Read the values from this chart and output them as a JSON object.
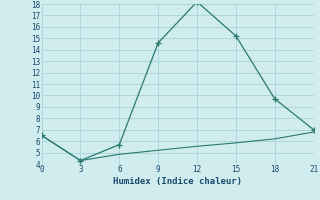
{
  "xlabel": "Humidex (Indice chaleur)",
  "line1_x": [
    0,
    3,
    6,
    9,
    12,
    15,
    18,
    21
  ],
  "line1_y": [
    6.5,
    4.3,
    5.7,
    14.6,
    18.2,
    15.2,
    9.7,
    7.0
  ],
  "line2_x": [
    0,
    3,
    6,
    9,
    12,
    15,
    18,
    21
  ],
  "line2_y": [
    6.5,
    4.3,
    4.85,
    5.2,
    5.55,
    5.85,
    6.2,
    6.8
  ],
  "line_color": "#2a7a6e",
  "bg_color": "#d0ecee",
  "grid_color": "#a8d4d8",
  "xlim": [
    0,
    21
  ],
  "ylim": [
    4,
    18
  ],
  "yticks": [
    4,
    5,
    6,
    7,
    8,
    9,
    10,
    11,
    12,
    13,
    14,
    15,
    16,
    17,
    18
  ],
  "xticks": [
    0,
    3,
    6,
    9,
    12,
    15,
    18,
    21
  ],
  "tick_fontsize": 5.5,
  "xlabel_fontsize": 6.5
}
